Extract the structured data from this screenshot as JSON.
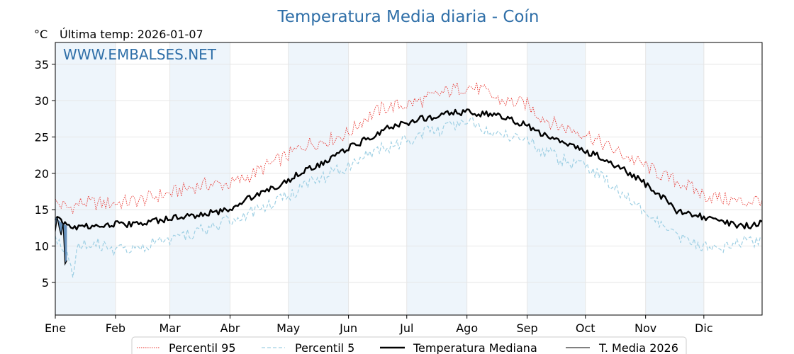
{
  "chart_data": {
    "type": "line",
    "title": "Temperatura Media diaria - Coín",
    "unit": "°C",
    "last_temp_label": "Última temp: 2026-01-07",
    "watermark": "WWW.EMBALSES.NET",
    "xlim": [
      1,
      365
    ],
    "ylim": [
      0.5,
      38
    ],
    "yticks": [
      5,
      10,
      15,
      20,
      25,
      30,
      35
    ],
    "months": [
      {
        "label": "Ene",
        "day": 1
      },
      {
        "label": "Feb",
        "day": 32
      },
      {
        "label": "Mar",
        "day": 60
      },
      {
        "label": "Abr",
        "day": 91
      },
      {
        "label": "May",
        "day": 121
      },
      {
        "label": "Jun",
        "day": 152
      },
      {
        "label": "Jul",
        "day": 182
      },
      {
        "label": "Ago",
        "day": 213
      },
      {
        "label": "Sep",
        "day": 244
      },
      {
        "label": "Oct",
        "day": 274
      },
      {
        "label": "Nov",
        "day": 305
      },
      {
        "label": "Dic",
        "day": 335
      }
    ],
    "shaded_months": [
      "Ene",
      "Mar",
      "May",
      "Jul",
      "Sep",
      "Nov"
    ],
    "grid": true,
    "legend_position": "bottom-center",
    "colors": {
      "p95": "#e8312b",
      "p5": "#9fd0e4",
      "median": "#000000",
      "current": "#000000",
      "current_fill": "#4f7fb0",
      "shade": "#eef5fb",
      "grid": "#e6e6e6"
    },
    "series": [
      {
        "name": "Percentil 95",
        "style": "dotted",
        "x": [
          1,
          8,
          15,
          25,
          35,
          45,
          55,
          60,
          70,
          80,
          91,
          100,
          110,
          121,
          130,
          140,
          152,
          160,
          170,
          182,
          190,
          200,
          206,
          213,
          220,
          230,
          244,
          250,
          260,
          274,
          280,
          290,
          305,
          315,
          325,
          335,
          345,
          355,
          365
        ],
        "y": [
          16,
          15.2,
          16,
          15.8,
          16,
          16.3,
          17,
          17.2,
          18,
          18.5,
          18.5,
          19.5,
          21,
          22.5,
          24,
          24.5,
          25.5,
          27.5,
          29,
          29.5,
          30,
          31,
          31.5,
          32,
          31.5,
          30,
          29.5,
          28,
          26.5,
          25.5,
          24.5,
          23,
          21,
          19.5,
          18.5,
          17,
          16.5,
          16,
          16.5
        ]
      },
      {
        "name": "Percentil 5",
        "style": "dashed",
        "x": [
          1,
          5,
          8,
          10,
          12,
          15,
          20,
          25,
          30,
          35,
          40,
          50,
          60,
          70,
          80,
          91,
          100,
          110,
          121,
          130,
          140,
          152,
          160,
          170,
          182,
          190,
          200,
          206,
          213,
          220,
          230,
          244,
          250,
          260,
          274,
          280,
          290,
          305,
          315,
          325,
          335,
          340,
          345,
          355,
          365
        ],
        "y": [
          11,
          10,
          8,
          6,
          9.5,
          10,
          10.5,
          10,
          9.5,
          9.5,
          10,
          10.2,
          10.5,
          11.5,
          12.5,
          13.5,
          14.5,
          15.5,
          17,
          18.5,
          19.5,
          21,
          22.5,
          23.5,
          24.5,
          25.5,
          26,
          26.5,
          27,
          26.5,
          25.5,
          25,
          23.5,
          22,
          21,
          20,
          18,
          14.5,
          12.5,
          11,
          10,
          9.5,
          10,
          10.5,
          10.8
        ]
      },
      {
        "name": "Temperatura Mediana",
        "style": "solid-thick",
        "x": [
          1,
          5,
          10,
          20,
          30,
          40,
          50,
          60,
          70,
          80,
          91,
          100,
          110,
          121,
          130,
          140,
          152,
          160,
          170,
          182,
          190,
          200,
          206,
          213,
          220,
          230,
          244,
          250,
          260,
          270,
          274,
          280,
          290,
          300,
          305,
          310,
          315,
          320,
          325,
          335,
          340,
          350,
          360,
          365
        ],
        "y": [
          14,
          13,
          12.5,
          12.7,
          13,
          13,
          13.3,
          13.8,
          14.2,
          14.5,
          15,
          16.5,
          17.5,
          19,
          20.5,
          21.5,
          23.5,
          24.5,
          26,
          27,
          27.5,
          28,
          28.3,
          28.5,
          28.2,
          28,
          26.5,
          25.5,
          24.5,
          23.5,
          23,
          22.5,
          21,
          19.5,
          18.5,
          17,
          16.5,
          15,
          14.5,
          14,
          13.5,
          13,
          12.7,
          13.2
        ]
      },
      {
        "name": "T. Media 2026",
        "style": "solid-thin",
        "x": [
          1,
          2,
          3,
          4,
          5,
          6,
          7
        ],
        "y": [
          12,
          14,
          12.5,
          11.5,
          13,
          7.5,
          8
        ]
      }
    ]
  }
}
